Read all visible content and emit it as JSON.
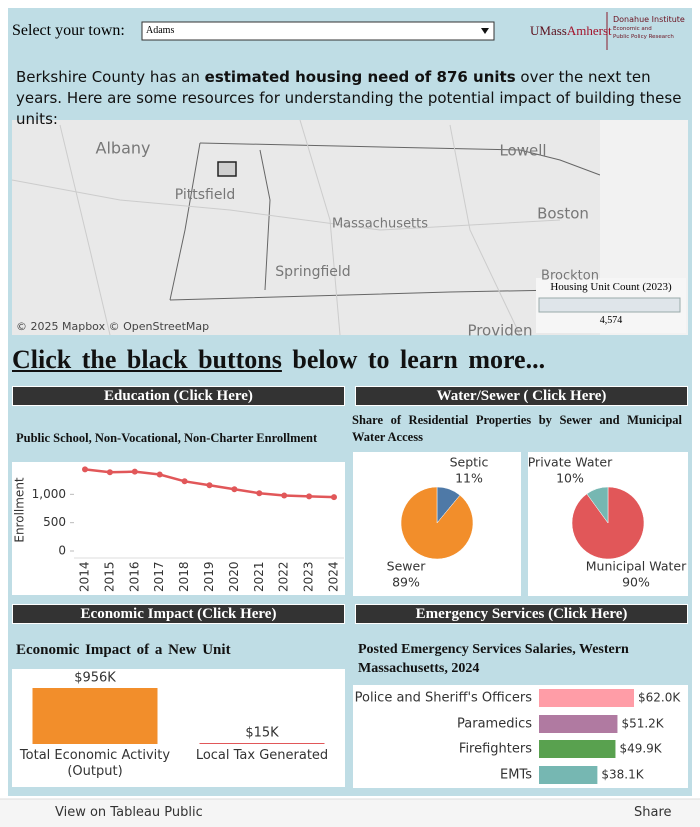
{
  "header": {
    "select_label": "Select your town:",
    "selected_town": "Adams",
    "brand_a": "UMass",
    "brand_b": "Amherst",
    "institute": "Donahue Institute",
    "institute_sub1": "Economic and",
    "institute_sub2": "Public Policy Research"
  },
  "intro": {
    "before": "Berkshire County has an ",
    "bold": "estimated housing need of 876 units",
    "after": " over the next ten years. Here are some resources for understanding the potential impact of building these units:"
  },
  "map": {
    "labels": [
      "Albany",
      "Lowell",
      "Pittsfield",
      "Massachusetts",
      "Boston",
      "Springfield",
      "Brockton",
      "Providen"
    ],
    "attribution": "© 2025 Mapbox © OpenStreetMap",
    "legend_title": "Housing Unit Count (2023)",
    "legend_value": "4,574"
  },
  "headline": {
    "link": "Click the black buttons",
    "rest": "below to learn more..."
  },
  "buttons": [
    "Education (Click Here)",
    "Water/Sewer ( Click Here)",
    "Economic Impact (Click Here)",
    "Emergency Services (Click Here)"
  ],
  "chart_data": [
    {
      "type": "line",
      "title": "Public School, Non-Vocational, Non-Charter Enrollment",
      "ylabel": "Enrollment",
      "categories": [
        "2014",
        "2015",
        "2016",
        "2017",
        "2018",
        "2019",
        "2020",
        "2021",
        "2022",
        "2023",
        "2024"
      ],
      "values": [
        1440,
        1390,
        1400,
        1350,
        1230,
        1160,
        1090,
        1020,
        980,
        965,
        950
      ],
      "color": "#e15759",
      "ylim": [
        0,
        1500
      ],
      "yticks": [
        0,
        500,
        {
          "value": 1000,
          "label": "1,000"
        }
      ]
    },
    {
      "type": "pie",
      "title": "Share of Residential Properties by Sewer and Municipal Water Access",
      "categories": [
        "Septic",
        "Sewer"
      ],
      "values": [
        11,
        89
      ],
      "value_labels": [
        "11%",
        "89%"
      ],
      "colors": [
        "#4e79a7",
        "#f28e2b"
      ]
    },
    {
      "type": "pie",
      "categories": [
        "Municipal Water",
        "Private Water"
      ],
      "values": [
        90,
        10
      ],
      "value_labels": [
        "90%",
        "10%"
      ],
      "colors": [
        "#e15759",
        "#76b7b2"
      ]
    },
    {
      "type": "bar",
      "title": "Economic Impact of a New Unit",
      "categories": [
        "Total Economic Activity (Output)",
        "Local Tax Generated"
      ],
      "values": [
        956000,
        15000
      ],
      "value_labels": [
        "$956K",
        "$15K"
      ],
      "colors": [
        "#f28e2b",
        "#e15759"
      ]
    },
    {
      "type": "barh",
      "title": "Posted Emergency Services Salaries, Western Massachusetts, 2024",
      "categories": [
        "Police and Sheriff's Officers",
        "Paramedics",
        "Firefighters",
        "EMTs"
      ],
      "values": [
        62000,
        51200,
        49900,
        38100
      ],
      "value_labels": [
        "$62.0K",
        "$51.2K",
        "$49.9K",
        "$38.1K"
      ],
      "colors": [
        "#ff9da7",
        "#b07aa1",
        "#59a14f",
        "#76b7b2"
      ]
    }
  ],
  "footer": {
    "view": "View on Tableau Public",
    "share": "Share"
  }
}
